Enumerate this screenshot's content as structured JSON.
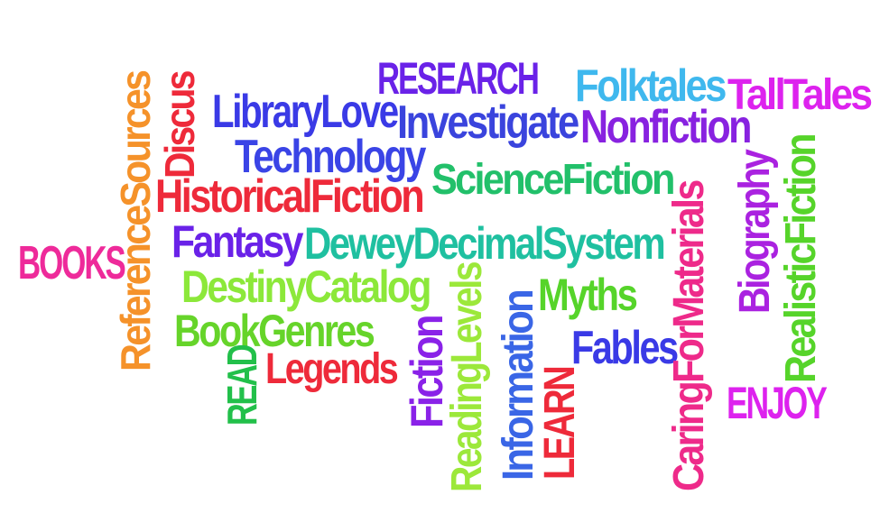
{
  "word_cloud": {
    "words": [
      {
        "id": "research",
        "text": "RESEARCH",
        "color": "#6a22e8"
      },
      {
        "id": "folktales",
        "text": "Folktales",
        "color": "#3fb8ee"
      },
      {
        "id": "talltales",
        "text": "TallTales",
        "color": "#dd22ee"
      },
      {
        "id": "librarylove",
        "text": "LibraryLove",
        "color": "#3a3ae6"
      },
      {
        "id": "investigate",
        "text": "Investigate",
        "color": "#3a44dd"
      },
      {
        "id": "nonfiction",
        "text": "Nonfiction",
        "color": "#8822e0"
      },
      {
        "id": "technology",
        "text": "Technology",
        "color": "#3a44e6"
      },
      {
        "id": "sciencefiction",
        "text": "ScienceFiction",
        "color": "#22c06a"
      },
      {
        "id": "historicalfiction",
        "text": "HistoricalFiction",
        "color": "#ee2a3a"
      },
      {
        "id": "fantasy",
        "text": "Fantasy",
        "color": "#6a22e8"
      },
      {
        "id": "deweydecimalsystem",
        "text": "DeweyDecimalSystem",
        "color": "#1fc0a0"
      },
      {
        "id": "books",
        "text": "BOOKS",
        "color": "#ee2a9a"
      },
      {
        "id": "destinycatalog",
        "text": "DestinyCatalog",
        "color": "#8ce83a"
      },
      {
        "id": "myths",
        "text": "Myths",
        "color": "#56d42a"
      },
      {
        "id": "bookgenres",
        "text": "BookGenres",
        "color": "#66d42a"
      },
      {
        "id": "legends",
        "text": "Legends",
        "color": "#ee2a3a"
      },
      {
        "id": "fables",
        "text": "Fables",
        "color": "#3a3ae6"
      },
      {
        "id": "enjoy",
        "text": "ENJOY",
        "color": "#dd22ee"
      },
      {
        "id": "referencesources",
        "text": "ReferenceSources",
        "color": "#f5922a"
      },
      {
        "id": "discus",
        "text": "Discus",
        "color": "#ee2a3a"
      },
      {
        "id": "read",
        "text": "READ",
        "color": "#22c04a"
      },
      {
        "id": "fiction",
        "text": "Fiction",
        "color": "#8a22e8"
      },
      {
        "id": "readinglevels",
        "text": "ReadingLevels",
        "color": "#9ce83a"
      },
      {
        "id": "information",
        "text": "Information",
        "color": "#3a66e6"
      },
      {
        "id": "learn",
        "text": "LEARN",
        "color": "#ee2a3a"
      },
      {
        "id": "caringformaterials",
        "text": "CaringForMaterials",
        "color": "#ee2a8a"
      },
      {
        "id": "biography",
        "text": "Biography",
        "color": "#aa22e0"
      },
      {
        "id": "realisticfiction",
        "text": "RealisticFiction",
        "color": "#56d42a"
      }
    ]
  }
}
